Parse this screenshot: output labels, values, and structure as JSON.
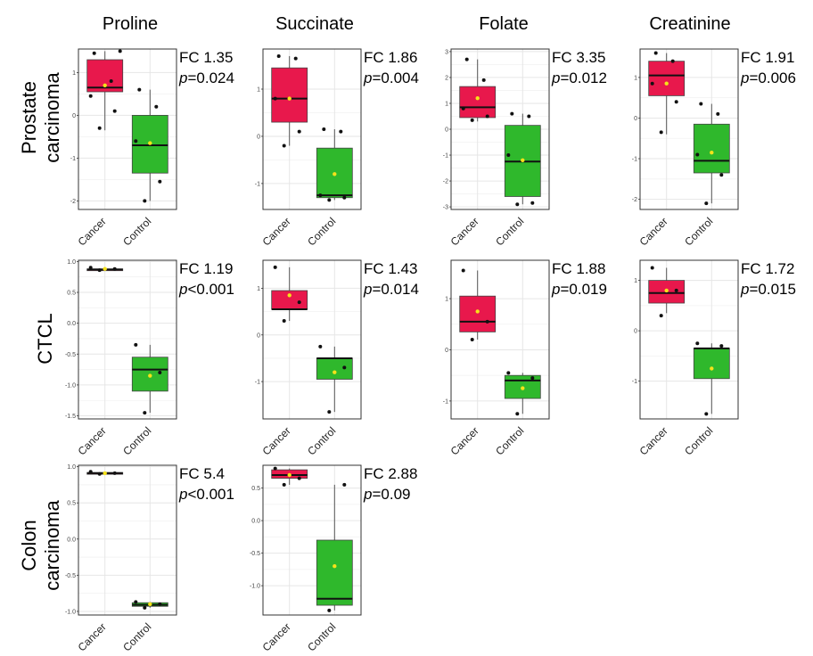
{
  "columns": [
    "Proline",
    "Succinate",
    "Folate",
    "Creatinine"
  ],
  "rows": [
    {
      "label_lines": [
        "Prostate",
        "carcinoma"
      ]
    },
    {
      "label_lines": [
        "CTCL"
      ]
    },
    {
      "label_lines": [
        "Colon",
        "carcinoma"
      ]
    }
  ],
  "colors": {
    "cancer_box": "#e8184c",
    "control_box": "#2fb82c",
    "mean_point": "#f5e21a",
    "median_line": "#111111",
    "points": "#111111",
    "grid": "#e6e6e6",
    "frame": "#333333"
  },
  "chart_data": [
    {
      "type": "box",
      "panel": "prostate-proline",
      "row": 0,
      "col": 0,
      "fc": "FC 1.35",
      "p_prefix": "p",
      "p_value": "=0.024",
      "ylim": [
        -2.2,
        1.55
      ],
      "yticks": [
        -2,
        -1,
        0,
        1
      ],
      "categories": [
        "Cancer",
        "Control"
      ],
      "series": [
        {
          "min": -0.35,
          "q1": 0.55,
          "median": 0.65,
          "q3": 1.3,
          "max": 1.5,
          "mean": 0.7,
          "points": [
            -0.3,
            0.1,
            0.45,
            0.8,
            1.45,
            1.5
          ]
        },
        {
          "min": -2.0,
          "q1": -1.35,
          "median": -0.7,
          "q3": 0.0,
          "max": 0.6,
          "mean": -0.65,
          "points": [
            -2.0,
            -1.55,
            -0.6,
            0.2,
            0.6
          ]
        }
      ]
    },
    {
      "type": "box",
      "panel": "prostate-succinate",
      "row": 0,
      "col": 1,
      "fc": "FC 1.86",
      "p_prefix": "p",
      "p_value": "=0.004",
      "ylim": [
        -1.55,
        1.85
      ],
      "yticks": [
        -1,
        0,
        1
      ],
      "categories": [
        "Cancer",
        "Control"
      ],
      "series": [
        {
          "min": -0.2,
          "q1": 0.3,
          "median": 0.8,
          "q3": 1.45,
          "max": 1.7,
          "mean": 0.8,
          "points": [
            -0.2,
            0.1,
            0.8,
            1.65,
            1.7
          ]
        },
        {
          "min": -1.35,
          "q1": -1.3,
          "median": -1.25,
          "q3": -0.25,
          "max": 0.15,
          "mean": -0.8,
          "points": [
            -1.35,
            -1.3,
            -1.25,
            0.1,
            0.15
          ]
        }
      ]
    },
    {
      "type": "box",
      "panel": "prostate-folate",
      "row": 0,
      "col": 2,
      "fc": "FC 3.35",
      "p_prefix": "p",
      "p_value": "=0.012",
      "ylim": [
        -3.1,
        3.1
      ],
      "yticks": [
        -3,
        -2,
        -1,
        0,
        1,
        2,
        3
      ],
      "categories": [
        "Cancer",
        "Control"
      ],
      "series": [
        {
          "min": 0.3,
          "q1": 0.45,
          "median": 0.85,
          "q3": 1.65,
          "max": 2.7,
          "mean": 1.2,
          "points": [
            0.35,
            0.5,
            0.8,
            1.9,
            2.7
          ]
        },
        {
          "min": -2.9,
          "q1": -2.6,
          "median": -1.25,
          "q3": 0.15,
          "max": 0.6,
          "mean": -1.2,
          "points": [
            -2.9,
            -2.85,
            -1.0,
            0.5,
            0.6
          ]
        }
      ]
    },
    {
      "type": "box",
      "panel": "prostate-creatinine",
      "row": 0,
      "col": 3,
      "fc": "FC 1.91",
      "p_prefix": "p",
      "p_value": "=0.006",
      "ylim": [
        -2.25,
        1.7
      ],
      "yticks": [
        -2,
        -1,
        0,
        1
      ],
      "categories": [
        "Cancer",
        "Control"
      ],
      "series": [
        {
          "min": -0.4,
          "q1": 0.55,
          "median": 1.05,
          "q3": 1.4,
          "max": 1.6,
          "mean": 0.85,
          "points": [
            -0.35,
            0.4,
            0.85,
            1.4,
            1.6
          ]
        },
        {
          "min": -2.1,
          "q1": -1.35,
          "median": -1.05,
          "q3": -0.15,
          "max": 0.35,
          "mean": -0.85,
          "points": [
            -2.1,
            -1.4,
            -0.9,
            0.1,
            0.35
          ]
        }
      ]
    },
    {
      "type": "box",
      "panel": "ctcl-proline",
      "row": 1,
      "col": 0,
      "fc": "FC 1.19",
      "p_prefix": "p",
      "p_value": "<0.001",
      "ylim": [
        -1.55,
        1.02
      ],
      "yticks": [
        -1.5,
        -1.0,
        -0.5,
        0.0,
        0.5,
        1.0
      ],
      "tick_labels": [
        "-1.5",
        "-1.0",
        "-0.5",
        "0.0",
        "0.5",
        "1.0"
      ],
      "categories": [
        "Cancer",
        "Control"
      ],
      "series": [
        {
          "min": 0.86,
          "q1": 0.86,
          "median": 0.87,
          "q3": 0.88,
          "max": 0.9,
          "mean": 0.88,
          "points": [
            0.86,
            0.88,
            0.9
          ]
        },
        {
          "min": -1.45,
          "q1": -1.1,
          "median": -0.75,
          "q3": -0.55,
          "max": -0.35,
          "mean": -0.85,
          "points": [
            -1.45,
            -0.8,
            -0.35
          ]
        }
      ]
    },
    {
      "type": "box",
      "panel": "ctcl-succinate",
      "row": 1,
      "col": 1,
      "fc": "FC 1.43",
      "p_prefix": "p",
      "p_value": "=0.014",
      "ylim": [
        -1.8,
        1.6
      ],
      "yticks": [
        -1,
        0,
        1
      ],
      "categories": [
        "Cancer",
        "Control"
      ],
      "series": [
        {
          "min": 0.3,
          "q1": 0.55,
          "median": 0.55,
          "q3": 0.95,
          "max": 1.45,
          "mean": 0.85,
          "points": [
            0.3,
            0.7,
            1.45
          ]
        },
        {
          "min": -1.65,
          "q1": -0.95,
          "median": -0.5,
          "q3": -0.5,
          "max": -0.25,
          "mean": -0.8,
          "points": [
            -1.65,
            -0.7,
            -0.25
          ]
        }
      ]
    },
    {
      "type": "box",
      "panel": "ctcl-folate",
      "row": 1,
      "col": 2,
      "fc": "FC 1.88",
      "p_prefix": "p",
      "p_value": "=0.019",
      "ylim": [
        -1.35,
        1.75
      ],
      "yticks": [
        -1,
        0,
        1
      ],
      "categories": [
        "Cancer",
        "Control"
      ],
      "series": [
        {
          "min": 0.2,
          "q1": 0.35,
          "median": 0.55,
          "q3": 1.05,
          "max": 1.55,
          "mean": 0.75,
          "points": [
            0.2,
            0.55,
            1.55
          ]
        },
        {
          "min": -1.25,
          "q1": -0.95,
          "median": -0.6,
          "q3": -0.5,
          "max": -0.45,
          "mean": -0.75,
          "points": [
            -1.25,
            -0.55,
            -0.45
          ]
        }
      ]
    },
    {
      "type": "box",
      "panel": "ctcl-creatinine",
      "row": 1,
      "col": 3,
      "fc": "FC 1.72",
      "p_prefix": "p",
      "p_value": "=0.015",
      "ylim": [
        -1.75,
        1.4
      ],
      "yticks": [
        -1,
        0,
        1
      ],
      "categories": [
        "Cancer",
        "Control"
      ],
      "series": [
        {
          "min": 0.35,
          "q1": 0.55,
          "median": 0.75,
          "q3": 1.0,
          "max": 1.25,
          "mean": 0.8,
          "points": [
            0.3,
            0.8,
            1.25
          ]
        },
        {
          "min": -1.65,
          "q1": -0.95,
          "median": -0.35,
          "q3": -0.35,
          "max": -0.25,
          "mean": -0.75,
          "points": [
            -1.65,
            -0.3,
            -0.25
          ]
        }
      ]
    },
    {
      "type": "box",
      "panel": "colon-proline",
      "row": 2,
      "col": 0,
      "fc": "FC 5.4",
      "p_prefix": "p",
      "p_value": "<0.001",
      "ylim": [
        -1.05,
        1.02
      ],
      "yticks": [
        -1.0,
        -0.5,
        0.0,
        0.5,
        1.0
      ],
      "tick_labels": [
        "-1.0",
        "-0.5",
        "0.0",
        "0.5",
        "1.0"
      ],
      "categories": [
        "Cancer",
        "Control"
      ],
      "series": [
        {
          "min": 0.9,
          "q1": 0.9,
          "median": 0.91,
          "q3": 0.92,
          "max": 0.93,
          "mean": 0.91,
          "points": [
            0.9,
            0.91,
            0.93
          ]
        },
        {
          "min": -0.95,
          "q1": -0.93,
          "median": -0.91,
          "q3": -0.88,
          "max": -0.87,
          "mean": -0.9,
          "points": [
            -0.95,
            -0.9,
            -0.87
          ]
        }
      ]
    },
    {
      "type": "box",
      "panel": "colon-succinate",
      "row": 2,
      "col": 1,
      "fc": "FC 2.88",
      "p_prefix": "p",
      "p_value": "=0.09",
      "ylim": [
        -1.45,
        0.85
      ],
      "yticks": [
        -1.0,
        -0.5,
        0.0,
        0.5
      ],
      "tick_labels": [
        "-1.0",
        "-0.5",
        "0.0",
        "0.5"
      ],
      "categories": [
        "Cancer",
        "Control"
      ],
      "series": [
        {
          "min": 0.55,
          "q1": 0.65,
          "median": 0.7,
          "q3": 0.78,
          "max": 0.8,
          "mean": 0.7,
          "points": [
            0.55,
            0.65,
            0.8
          ]
        },
        {
          "min": -1.38,
          "q1": -1.3,
          "median": -1.2,
          "q3": -0.3,
          "max": 0.55,
          "mean": -0.7,
          "points": [
            -1.38,
            0.55
          ]
        }
      ]
    }
  ]
}
